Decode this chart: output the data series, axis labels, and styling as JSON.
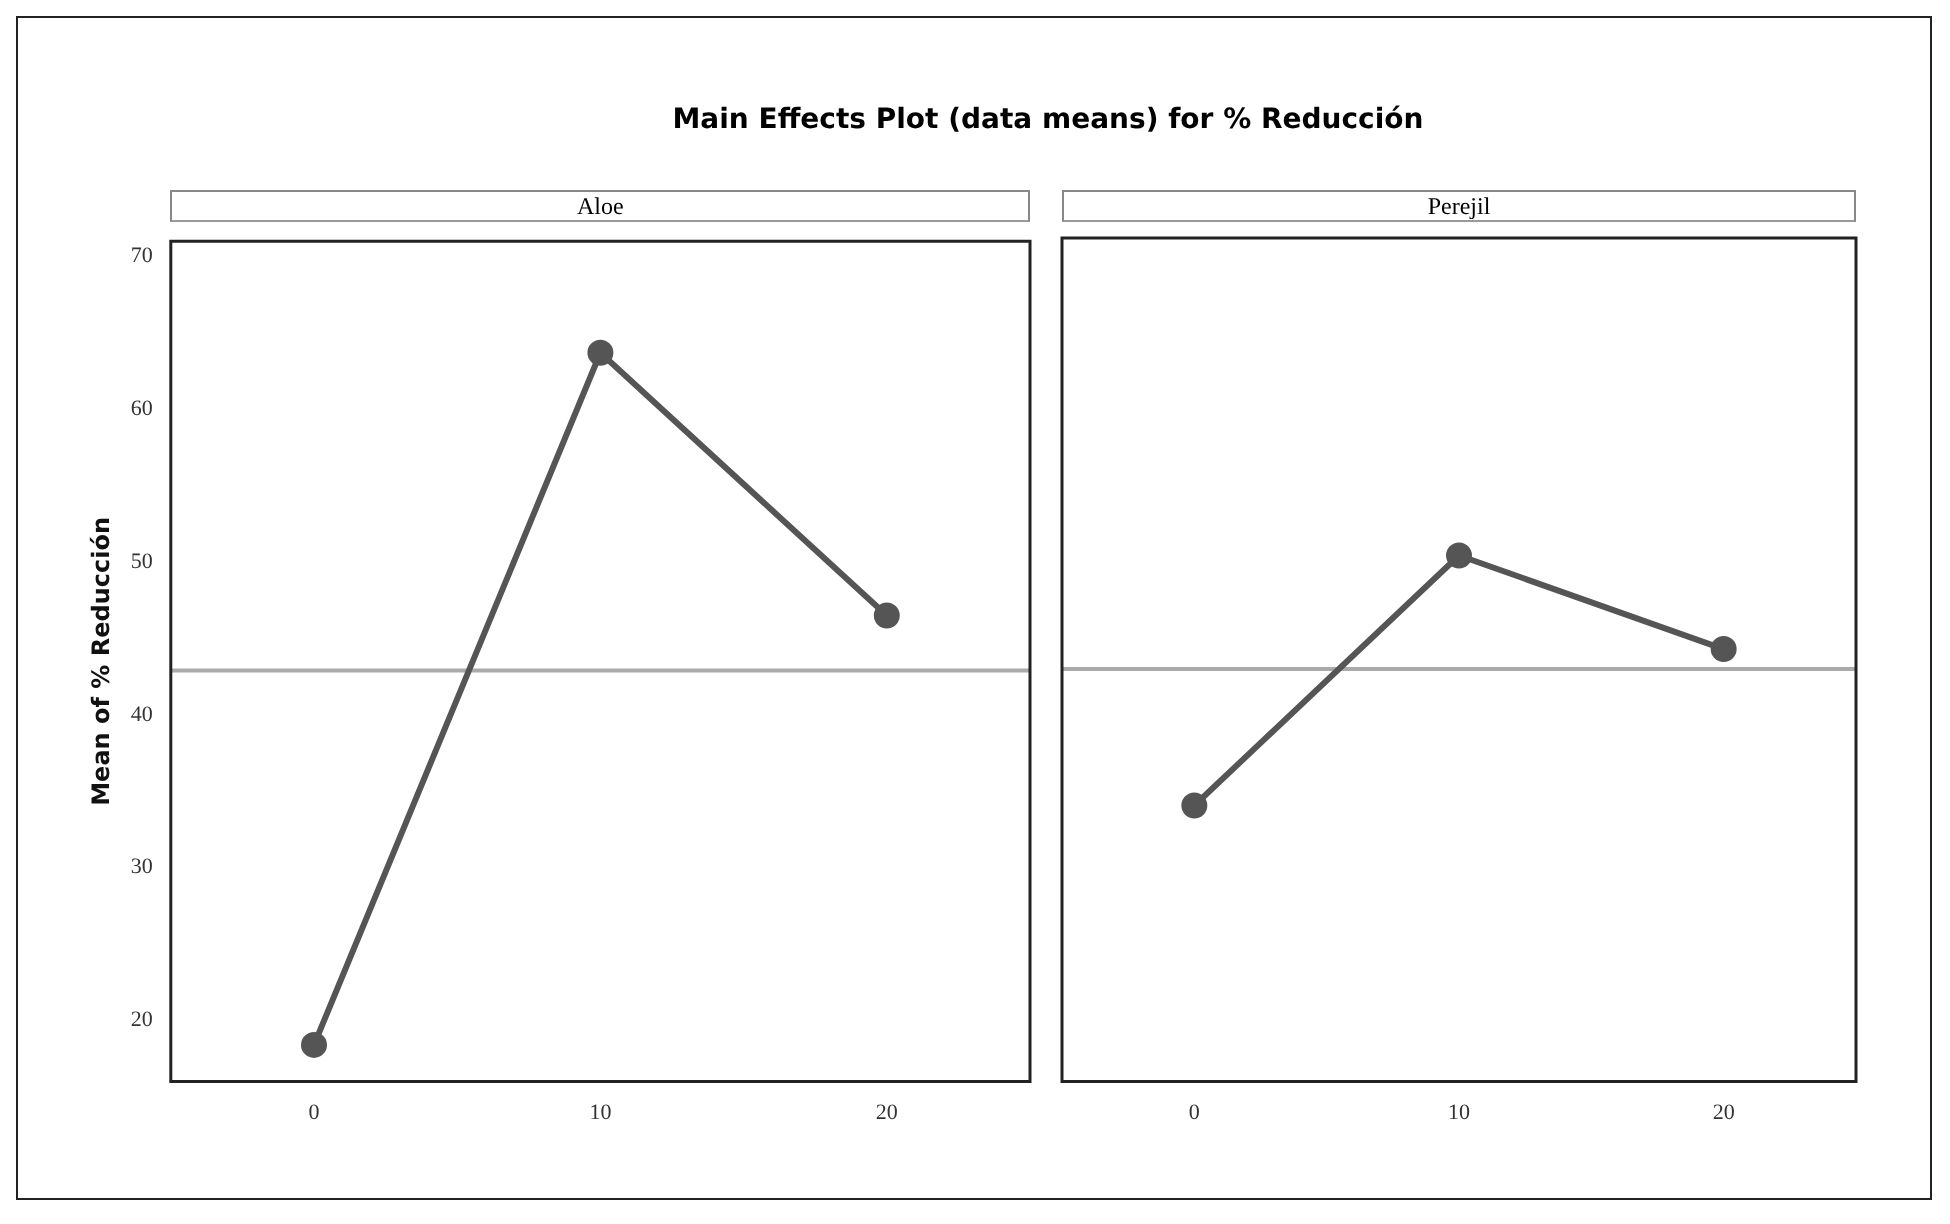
{
  "chart_data": [
    {
      "type": "line",
      "title": "Main Effects Plot (data means) for % Reducción",
      "subtitle": "Aloe",
      "ylabel": "Mean of % Reducción",
      "x": [
        0,
        10,
        20
      ],
      "series": [
        {
          "color": "#555555",
          "values": [
            18.4,
            63.7,
            46.5
          ]
        }
      ],
      "xlim": [
        -5,
        25
      ],
      "xticks": [
        0,
        10,
        20
      ],
      "ylim": [
        16,
        71
      ],
      "yticks": [
        20,
        30,
        40,
        50,
        60,
        70
      ],
      "marker": "circle",
      "grid": false,
      "legend": false,
      "ref_lines": [
        {
          "axis": "y",
          "value": 42.9,
          "color": "#aaaaaa"
        }
      ]
    },
    {
      "type": "line",
      "subtitle": "Perejil",
      "x": [
        0,
        10,
        20
      ],
      "series": [
        {
          "color": "#555555",
          "values": [
            34.0,
            50.3,
            44.2
          ]
        }
      ],
      "xlim": [
        -5,
        25
      ],
      "xticks": [
        0,
        10,
        20
      ],
      "ylim": [
        16,
        71
      ],
      "yticks": [
        20,
        30,
        40,
        50,
        60,
        70
      ],
      "tick_labels": "x",
      "marker": "circle",
      "grid": false,
      "legend": false,
      "ref_lines": [
        {
          "axis": "y",
          "value": 42.9,
          "color": "#aaaaaa"
        }
      ]
    }
  ]
}
